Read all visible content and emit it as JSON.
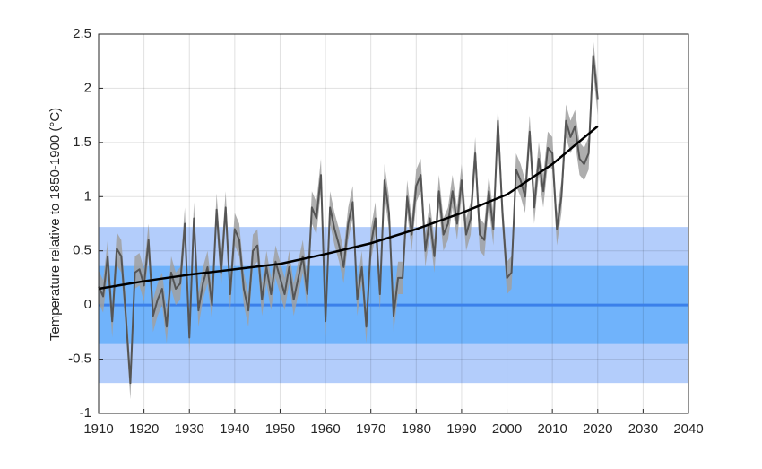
{
  "chart_data": {
    "type": "line",
    "y_label": "Temperature relative to 1850-1900 (°C)",
    "xlim": [
      1910,
      2040
    ],
    "xticks": [
      1910,
      1920,
      1930,
      1940,
      1950,
      1960,
      1970,
      1980,
      1990,
      2000,
      2010,
      2020,
      2030,
      2040
    ],
    "ylim": [
      -1,
      2.5
    ],
    "yticks": [
      -1,
      -0.5,
      0,
      0.5,
      1,
      1.5,
      2,
      2.5
    ],
    "grid": true,
    "bands": [
      {
        "lower": -0.72,
        "upper": 0.72,
        "color": "#b3cdfb"
      },
      {
        "lower": -0.36,
        "upper": 0.36,
        "color": "#70b3fb"
      }
    ],
    "reference_line": {
      "value": 0,
      "color": "#3b80ea"
    },
    "series": [
      {
        "color": "#555555",
        "band_color": "#a0a0a0",
        "error": 0.15,
        "x": [
          1910,
          1911,
          1912,
          1913,
          1914,
          1915,
          1916,
          1917,
          1918,
          1919,
          1920,
          1921,
          1922,
          1923,
          1924,
          1925,
          1926,
          1927,
          1928,
          1929,
          1930,
          1931,
          1932,
          1933,
          1934,
          1935,
          1936,
          1937,
          1938,
          1939,
          1940,
          1941,
          1942,
          1943,
          1944,
          1945,
          1946,
          1947,
          1948,
          1949,
          1950,
          1951,
          1952,
          1953,
          1954,
          1955,
          1956,
          1957,
          1958,
          1959,
          1960,
          1961,
          1962,
          1963,
          1964,
          1965,
          1966,
          1967,
          1968,
          1969,
          1970,
          1971,
          1972,
          1973,
          1974,
          1975,
          1976,
          1977,
          1978,
          1979,
          1980,
          1981,
          1982,
          1983,
          1984,
          1985,
          1986,
          1987,
          1988,
          1989,
          1990,
          1991,
          1992,
          1993,
          1994,
          1995,
          1996,
          1997,
          1998,
          1999,
          2000,
          2001,
          2002,
          2003,
          2004,
          2005,
          2006,
          2007,
          2008,
          2009,
          2010,
          2011,
          2012,
          2013,
          2014,
          2015,
          2016,
          2017,
          2018,
          2019,
          2020
        ],
        "values": [
          0.17,
          0.08,
          0.45,
          -0.15,
          0.52,
          0.45,
          -0.1,
          -0.72,
          0.3,
          0.33,
          0.18,
          0.6,
          -0.1,
          0.05,
          0.15,
          -0.2,
          0.3,
          0.15,
          0.2,
          0.75,
          -0.3,
          0.8,
          -0.05,
          0.2,
          0.35,
          0.0,
          0.88,
          0.3,
          0.9,
          0.1,
          0.7,
          0.6,
          0.15,
          -0.05,
          0.5,
          0.55,
          0.05,
          0.35,
          0.1,
          0.4,
          0.25,
          0.1,
          0.35,
          0.05,
          0.25,
          0.45,
          0.1,
          0.9,
          0.8,
          1.2,
          -0.15,
          0.9,
          0.7,
          0.55,
          0.35,
          0.75,
          0.95,
          0.05,
          0.35,
          -0.2,
          0.55,
          0.8,
          0.1,
          1.15,
          0.85,
          -0.1,
          0.25,
          0.25,
          1.0,
          0.65,
          1.1,
          1.2,
          0.5,
          0.8,
          0.45,
          1.05,
          0.65,
          0.75,
          1.05,
          0.75,
          1.15,
          0.65,
          0.8,
          1.4,
          0.65,
          0.6,
          1.05,
          0.7,
          1.7,
          0.85,
          0.25,
          0.3,
          1.25,
          1.15,
          1.0,
          1.6,
          0.9,
          1.35,
          1.05,
          1.45,
          1.4,
          0.7,
          1.0,
          1.7,
          1.55,
          1.65,
          1.35,
          1.3,
          1.4,
          2.3,
          1.9
        ]
      },
      {
        "color": "#000000",
        "x": [
          1910,
          1920,
          1930,
          1940,
          1950,
          1960,
          1970,
          1980,
          1990,
          2000,
          2010,
          2020
        ],
        "values": [
          0.15,
          0.22,
          0.28,
          0.33,
          0.38,
          0.47,
          0.57,
          0.7,
          0.85,
          1.02,
          1.3,
          1.65
        ]
      }
    ]
  }
}
